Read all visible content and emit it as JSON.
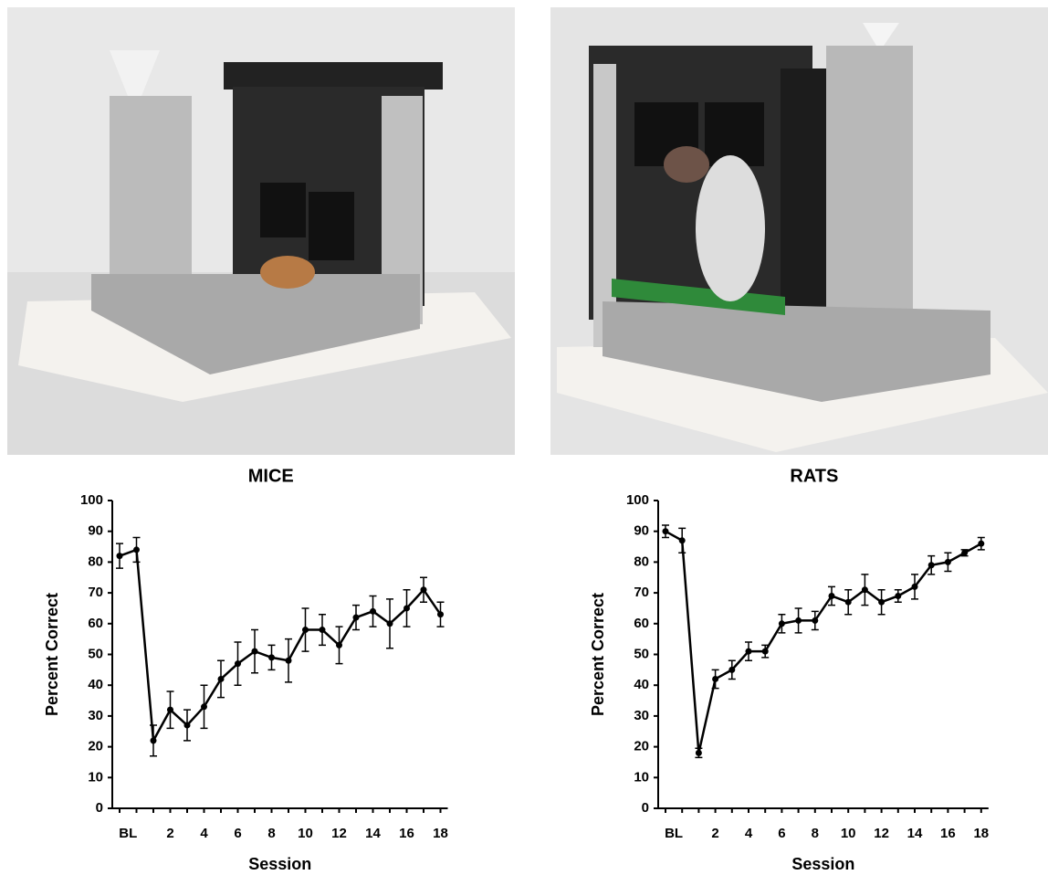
{
  "chart_data": [
    {
      "type": "line",
      "title": "MICE",
      "xlabel": "Session",
      "ylabel": "Percent Correct",
      "categories": [
        "BL",
        null,
        null,
        "2",
        null,
        "4",
        null,
        "6",
        null,
        "8",
        null,
        "10",
        null,
        "12",
        null,
        "14",
        null,
        "16",
        null,
        "18"
      ],
      "values": [
        82,
        84,
        22,
        32,
        27,
        33,
        42,
        47,
        51,
        49,
        48,
        58,
        58,
        53,
        62,
        64,
        60,
        65,
        71,
        63
      ],
      "errors": [
        4,
        4,
        5,
        6,
        5,
        7,
        6,
        7,
        7,
        4,
        7,
        7,
        5,
        6,
        4,
        5,
        8,
        6,
        4,
        4
      ],
      "color": "#000000",
      "ylim": [
        0,
        100
      ],
      "yticks": [
        0,
        10,
        20,
        30,
        40,
        50,
        60,
        70,
        80,
        90,
        100
      ]
    },
    {
      "type": "line",
      "title": "RATS",
      "xlabel": "Session",
      "ylabel": "Percent Correct",
      "categories": [
        "BL",
        null,
        null,
        "2",
        null,
        "4",
        null,
        "6",
        null,
        "8",
        null,
        "10",
        null,
        "12",
        null,
        "14",
        null,
        "16",
        null,
        "18"
      ],
      "values": [
        90,
        87,
        18,
        42,
        45,
        51,
        51,
        60,
        61,
        61,
        69,
        67,
        71,
        67,
        69,
        72,
        79,
        80,
        83,
        86
      ],
      "errors": [
        2,
        4,
        1.5,
        3,
        3,
        3,
        2,
        3,
        4,
        3,
        3,
        4,
        5,
        4,
        2,
        4,
        3,
        3,
        1,
        2
      ],
      "color": "#000000",
      "ylim": [
        0,
        100
      ],
      "yticks": [
        0,
        10,
        20,
        30,
        40,
        50,
        60,
        70,
        80,
        90,
        100
      ]
    }
  ]
}
